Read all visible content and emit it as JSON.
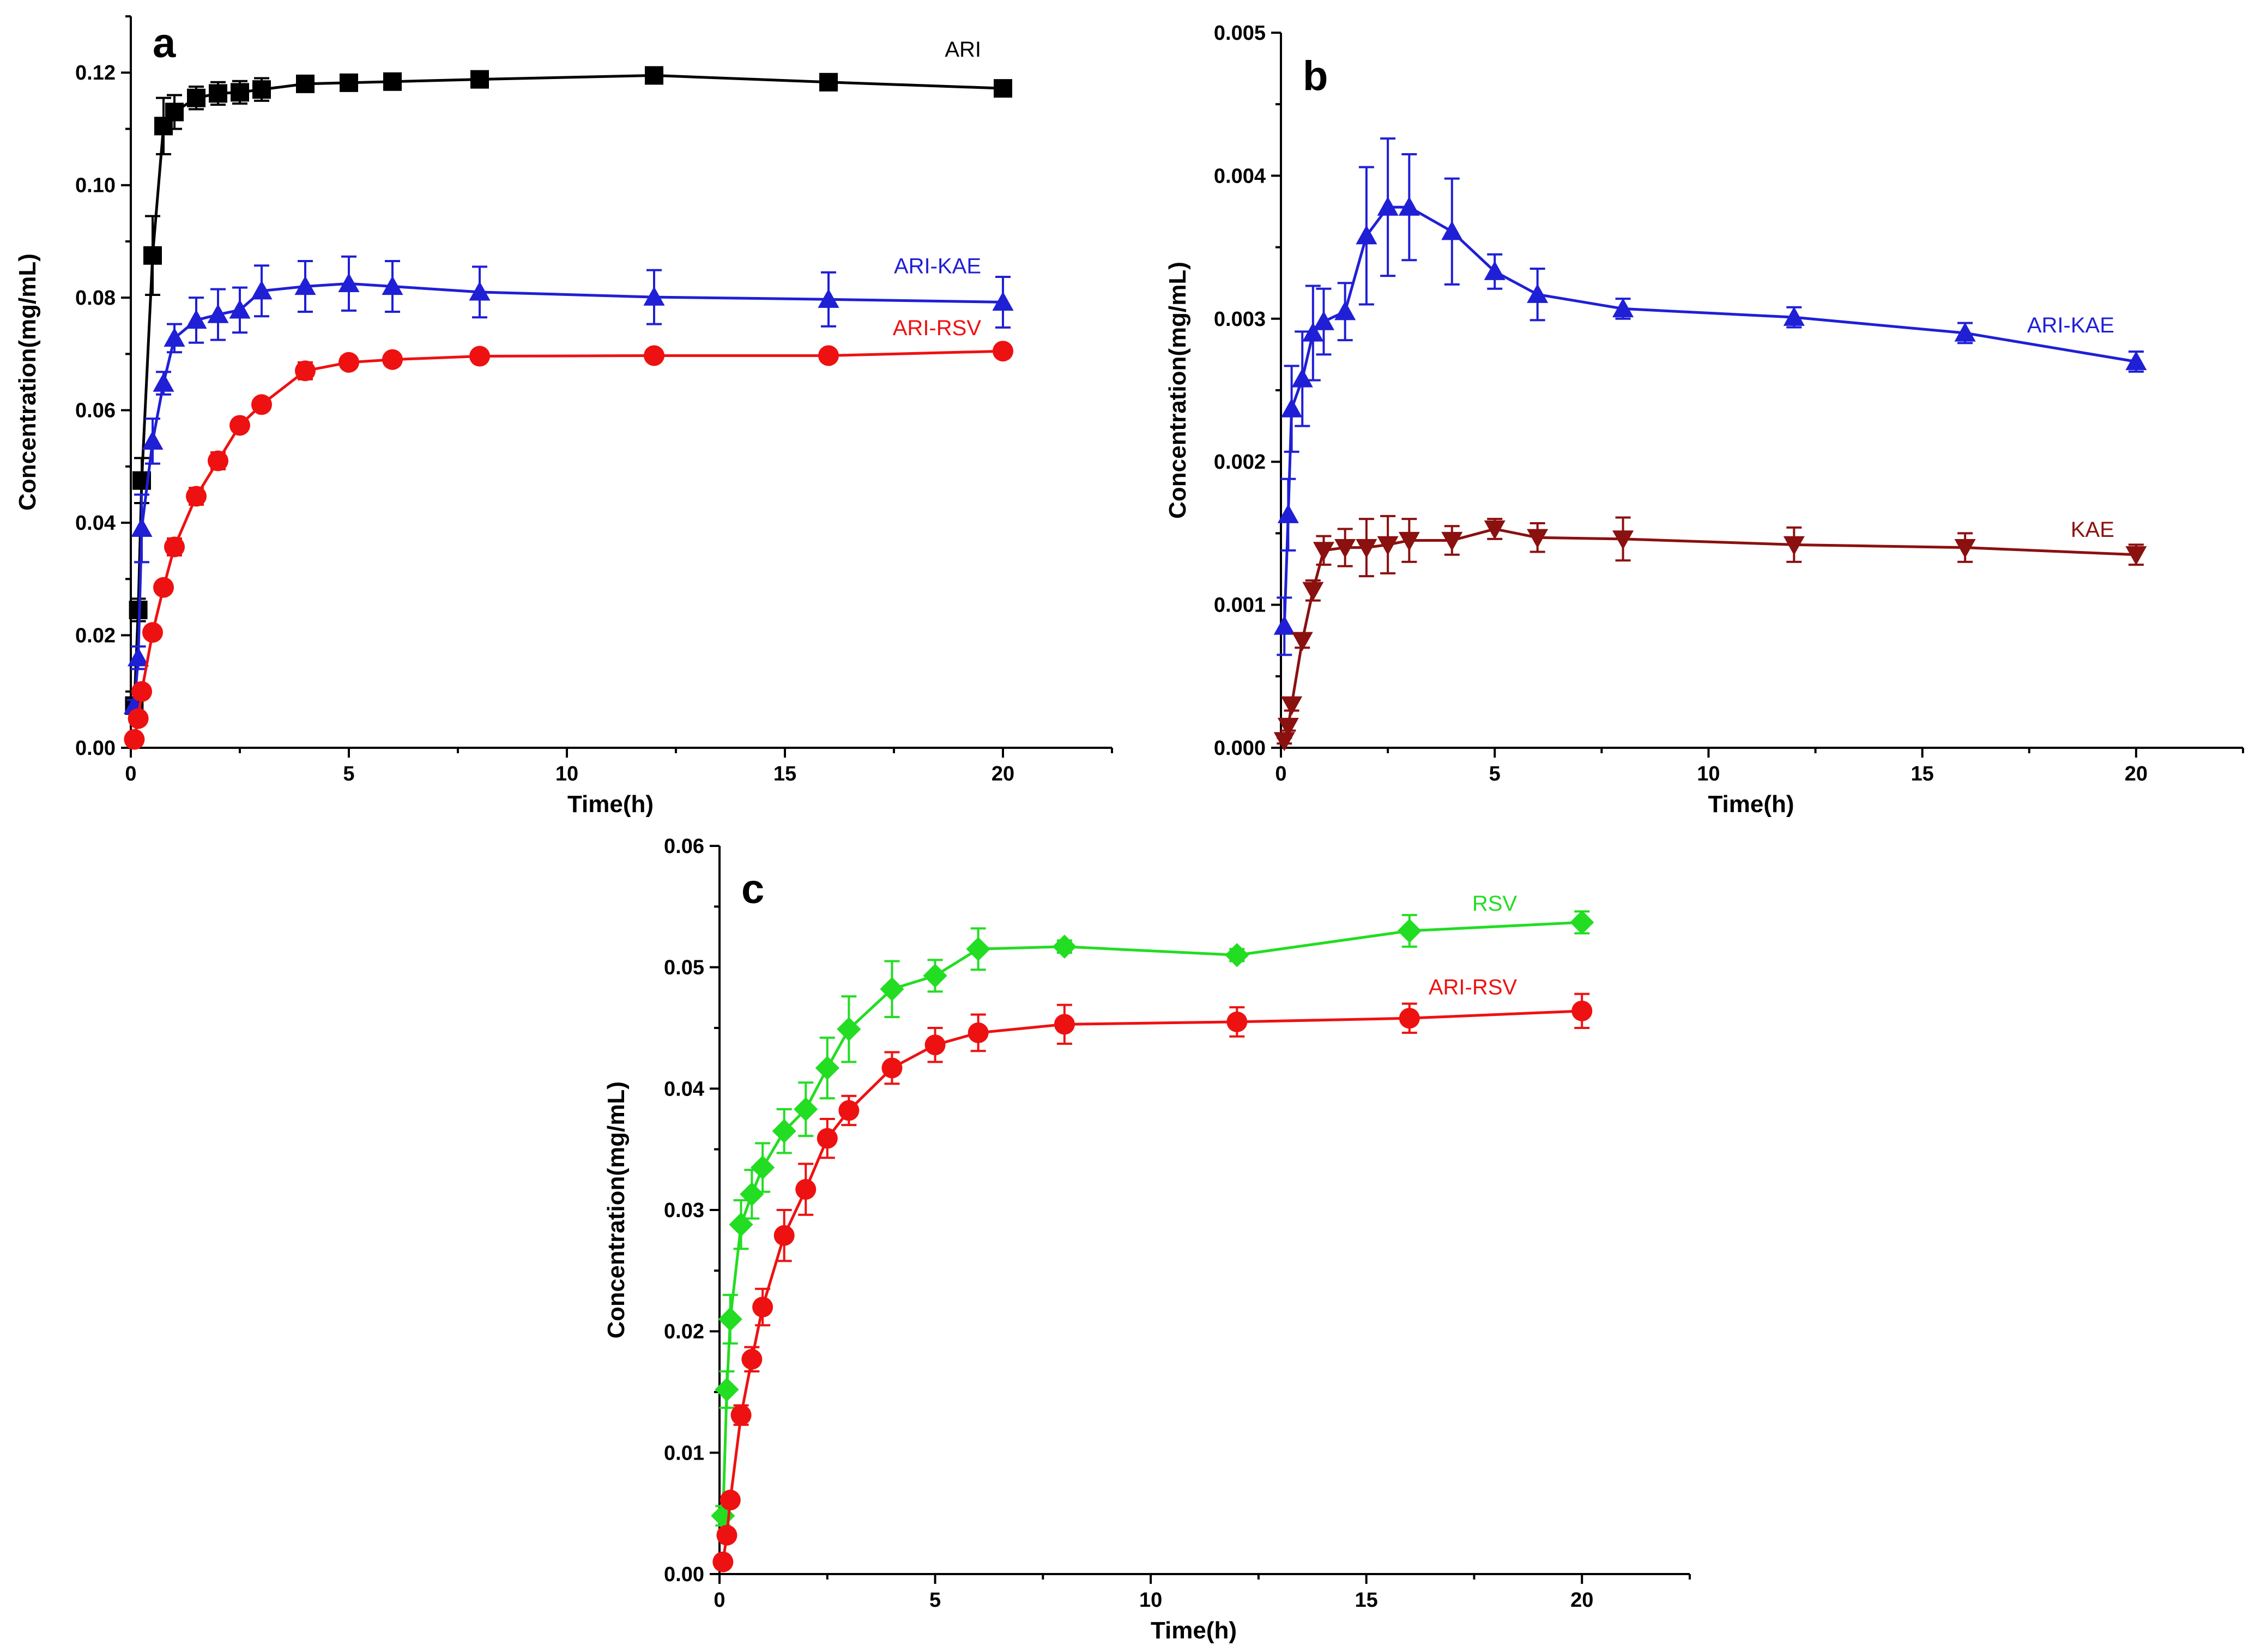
{
  "chart_data": [
    {
      "panel": "a",
      "type": "line",
      "xlabel": "Time(h)",
      "ylabel": "Concentration(mg/mL)",
      "xlim": [
        0,
        22.5
      ],
      "ylim": [
        0,
        0.13
      ],
      "xticks": [
        0,
        5,
        10,
        15,
        20
      ],
      "yticks": [
        0.0,
        0.02,
        0.04,
        0.06,
        0.08,
        0.1,
        0.12
      ],
      "ytick_labels": [
        "0.00",
        "0.02",
        "0.04",
        "0.06",
        "0.08",
        "0.10",
        "0.12"
      ],
      "grid": false,
      "series": [
        {
          "name": "ARI",
          "color": "#000000",
          "marker": "square",
          "label_anchor": [
            20,
            0.124
          ],
          "x": [
            0.08,
            0.17,
            0.25,
            0.5,
            0.75,
            1,
            1.5,
            2,
            2.5,
            3,
            4,
            5,
            6,
            8,
            12,
            16,
            20
          ],
          "y": [
            0.0075,
            0.0245,
            0.0475,
            0.0875,
            0.1105,
            0.113,
            0.1155,
            0.1163,
            0.1165,
            0.117,
            0.118,
            0.1182,
            0.1184,
            0.1188,
            0.1195,
            0.1183,
            0.1172
          ],
          "err": [
            0.001,
            0.002,
            0.004,
            0.007,
            0.005,
            0.003,
            0.002,
            0.002,
            0.002,
            0.002,
            0.0008,
            0.0008,
            0.0008,
            0.0008,
            0.0008,
            0.0008,
            0.0008
          ]
        },
        {
          "name": "ARI-KAE",
          "color": "#1f1fd6",
          "marker": "triangle-up",
          "label_anchor": [
            20,
            0.0855
          ],
          "x": [
            0.08,
            0.17,
            0.25,
            0.5,
            0.75,
            1,
            1.5,
            2,
            2.5,
            3,
            4,
            5,
            6,
            8,
            12,
            16,
            20
          ],
          "y": [
            0.0075,
            0.016,
            0.039,
            0.0545,
            0.0648,
            0.0728,
            0.076,
            0.077,
            0.0778,
            0.0812,
            0.082,
            0.0825,
            0.082,
            0.081,
            0.0801,
            0.0797,
            0.0792
          ],
          "err": [
            0.001,
            0.002,
            0.006,
            0.004,
            0.002,
            0.0025,
            0.004,
            0.0045,
            0.004,
            0.0045,
            0.0045,
            0.0048,
            0.0045,
            0.0045,
            0.0048,
            0.0048,
            0.0045
          ]
        },
        {
          "name": "ARI-RSV",
          "color": "#ee1111",
          "marker": "circle",
          "label_anchor": [
            20,
            0.0745
          ],
          "x": [
            0.08,
            0.17,
            0.25,
            0.5,
            0.75,
            1,
            1.5,
            2,
            2.5,
            3,
            4,
            5,
            6,
            8,
            12,
            16,
            20
          ],
          "y": [
            0.0015,
            0.0052,
            0.01,
            0.0205,
            0.0285,
            0.0357,
            0.0447,
            0.051,
            0.0573,
            0.061,
            0.067,
            0.0685,
            0.069,
            0.0696,
            0.0697,
            0.0697,
            0.0705
          ],
          "err": [
            0.0004,
            0.0006,
            0.0008,
            0.001,
            0.001,
            0.0015,
            0.0015,
            0.0015,
            0.001,
            0.001,
            0.0015,
            0.001,
            0.001,
            0.0008,
            0.0008,
            0.0008,
            0.0008
          ]
        }
      ]
    },
    {
      "panel": "b",
      "type": "line",
      "xlabel": "Time(h)",
      "ylabel": "Concentration(mg/mL)",
      "xlim": [
        0,
        22.5
      ],
      "ylim": [
        0,
        0.005
      ],
      "xticks": [
        0,
        5,
        10,
        15,
        20
      ],
      "yticks": [
        0.0,
        0.001,
        0.002,
        0.003,
        0.004,
        0.005
      ],
      "ytick_labels": [
        "0.000",
        "0.001",
        "0.002",
        "0.003",
        "0.004",
        "0.005"
      ],
      "grid": false,
      "series": [
        {
          "name": "ARI-KAE",
          "color": "#1f1fd6",
          "marker": "triangle-up",
          "label_anchor": [
            20,
            0.00295
          ],
          "x": [
            0.08,
            0.17,
            0.25,
            0.5,
            0.75,
            1,
            1.5,
            2,
            2.5,
            3,
            4,
            5,
            6,
            8,
            12,
            16,
            20
          ],
          "y": [
            0.00085,
            0.00163,
            0.00237,
            0.00258,
            0.0029,
            0.00298,
            0.00305,
            0.00358,
            0.00378,
            0.00378,
            0.00361,
            0.00333,
            0.00317,
            0.00307,
            0.00301,
            0.0029,
            0.0027
          ],
          "err": [
            0.0002,
            0.00025,
            0.0003,
            0.00033,
            0.00033,
            0.00023,
            0.0002,
            0.00048,
            0.00048,
            0.00037,
            0.00037,
            0.00012,
            0.00018,
            7e-05,
            7e-05,
            7e-05,
            7e-05
          ]
        },
        {
          "name": "KAE",
          "color": "#8b1010",
          "marker": "triangle-down",
          "label_anchor": [
            20,
            0.00152
          ],
          "x": [
            0.08,
            0.17,
            0.25,
            0.5,
            0.75,
            1,
            1.5,
            2,
            2.5,
            3,
            4,
            5,
            6,
            8,
            12,
            16,
            20
          ],
          "y": [
            5e-05,
            0.00015,
            0.0003,
            0.00075,
            0.0011,
            0.00138,
            0.0014,
            0.0014,
            0.00142,
            0.00145,
            0.00145,
            0.00153,
            0.00147,
            0.00146,
            0.00142,
            0.0014,
            0.00135
          ],
          "err": [
            2e-05,
            3e-05,
            4e-05,
            5e-05,
            7e-05,
            0.0001,
            0.00013,
            0.0002,
            0.0002,
            0.00015,
            0.0001,
            7e-05,
            0.0001,
            0.00015,
            0.00012,
            0.0001,
            7e-05
          ]
        }
      ]
    },
    {
      "panel": "c",
      "type": "line",
      "xlabel": "Time(h)",
      "ylabel": "Concentration(mg/mL)",
      "xlim": [
        0,
        22.5
      ],
      "ylim": [
        0,
        0.06
      ],
      "xticks": [
        0,
        5,
        10,
        15,
        20
      ],
      "yticks": [
        0.0,
        0.01,
        0.02,
        0.03,
        0.04,
        0.05,
        0.06
      ],
      "ytick_labels": [
        "0.00",
        "0.01",
        "0.02",
        "0.03",
        "0.04",
        "0.05",
        "0.06"
      ],
      "grid": false,
      "series": [
        {
          "name": "RSV",
          "color": "#22dd22",
          "marker": "diamond",
          "label_anchor": [
            19,
            0.0552
          ],
          "x": [
            0.08,
            0.17,
            0.25,
            0.5,
            0.75,
            1,
            1.5,
            2,
            2.5,
            3,
            4,
            5,
            6,
            8,
            12,
            16,
            20
          ],
          "y": [
            0.0048,
            0.0152,
            0.021,
            0.0288,
            0.0313,
            0.0335,
            0.0365,
            0.0383,
            0.0417,
            0.0449,
            0.0482,
            0.0493,
            0.0515,
            0.0517,
            0.051,
            0.053,
            0.0537
          ],
          "err": [
            0.0008,
            0.0015,
            0.002,
            0.002,
            0.002,
            0.002,
            0.0018,
            0.0022,
            0.0025,
            0.0027,
            0.0023,
            0.0013,
            0.0017,
            0.0005,
            0.0005,
            0.0013,
            0.0009
          ]
        },
        {
          "name": "ARI-RSV",
          "color": "#ee1111",
          "marker": "circle",
          "label_anchor": [
            19,
            0.0483
          ],
          "x": [
            0.08,
            0.17,
            0.25,
            0.5,
            0.75,
            1,
            1.5,
            2,
            2.5,
            3,
            4,
            5,
            6,
            8,
            12,
            16,
            20
          ],
          "y": [
            0.001,
            0.0032,
            0.0061,
            0.0131,
            0.0177,
            0.022,
            0.0279,
            0.0317,
            0.0359,
            0.0382,
            0.0417,
            0.0436,
            0.0446,
            0.0453,
            0.0455,
            0.0458,
            0.0464
          ],
          "err": [
            0.0003,
            0.0004,
            0.0005,
            0.0008,
            0.001,
            0.0015,
            0.0021,
            0.0021,
            0.0016,
            0.0012,
            0.0013,
            0.0014,
            0.0015,
            0.0016,
            0.0012,
            0.0012,
            0.0014
          ]
        }
      ]
    }
  ]
}
